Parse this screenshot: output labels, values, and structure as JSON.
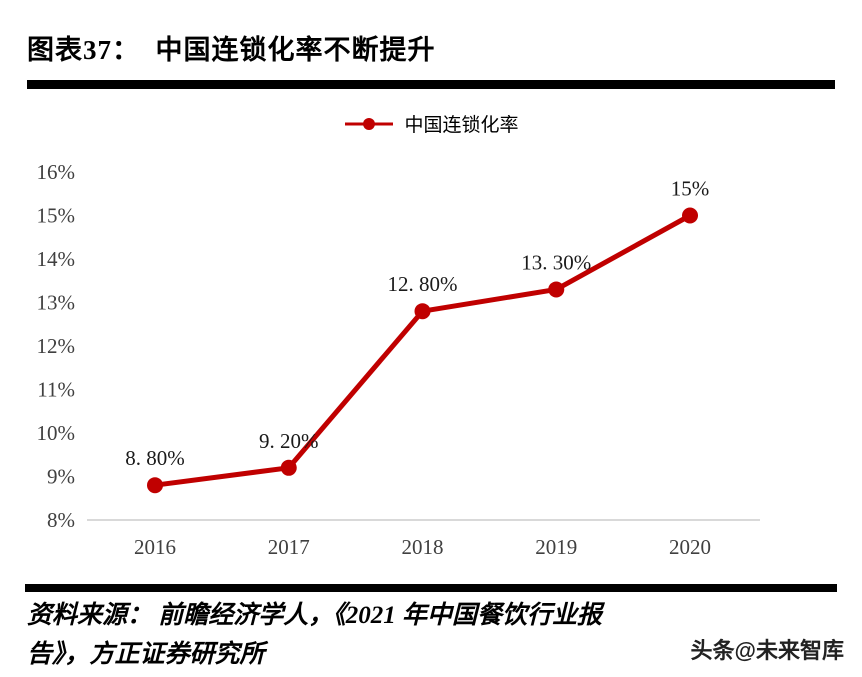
{
  "header": {
    "title": "图表37：  中国连锁化率不断提升"
  },
  "legend": {
    "label": "中国连锁化率"
  },
  "source": {
    "line1": "资料来源： 前瞻经济学人，《2021 年中国餐饮行业报",
    "line2": "告》，方正证券研究所"
  },
  "footer": {
    "watermark": "头条@未来智库"
  },
  "chart_data": {
    "type": "line",
    "title": "中国连锁化率不断提升",
    "categories": [
      "2016",
      "2017",
      "2018",
      "2019",
      "2020"
    ],
    "series": [
      {
        "name": "中国连锁化率",
        "values": [
          8.8,
          9.2,
          12.8,
          13.3,
          15
        ]
      }
    ],
    "point_labels": [
      "8. 80%",
      "9. 20%",
      "12. 80%",
      "13. 30%",
      "15%"
    ],
    "y_ticks": [
      "16%",
      "15%",
      "14%",
      "13%",
      "12%",
      "11%",
      "10%",
      "9%",
      "8%"
    ],
    "ylim": [
      8,
      16
    ],
    "xlabel": "",
    "ylabel": "",
    "grid": false,
    "legend_position": "top",
    "line_color": "#c00000",
    "axis_label_color": "#404040",
    "data_label_color": "#1a1a1a",
    "axis_line_color": "#d9d9d9",
    "marker": "circle"
  }
}
